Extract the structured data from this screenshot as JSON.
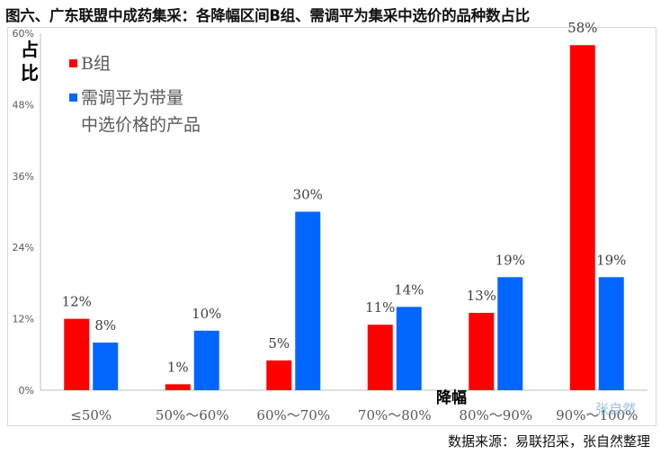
{
  "title": "图六、广东联盟中成药集采：各降幅区间B组、需调平为集采中选价的品种数占比",
  "source": "数据来源：易联招采，张自然整理",
  "watermark": "张自然",
  "chart_data": {
    "type": "bar",
    "ylabel": "占比",
    "xlabel": "降幅",
    "ylim": [
      0,
      60
    ],
    "yticks": [
      "0%",
      "12%",
      "24%",
      "36%",
      "48%",
      "60%"
    ],
    "yticks_values": [
      0,
      12,
      24,
      36,
      48,
      60
    ],
    "grid": false,
    "legend_position": "top-left",
    "categories": [
      "≤50%",
      "50%～60%",
      "60%～70%",
      "70%～80%",
      "80%～90%",
      "90%～100%"
    ],
    "series": [
      {
        "name": "B组",
        "color": "#ff0000",
        "values": [
          12,
          1,
          5,
          11,
          13,
          58
        ],
        "labels": [
          "12%",
          "1%",
          "5%",
          "11%",
          "13%",
          "58%"
        ]
      },
      {
        "name": "需调平为带量中选价格的产品",
        "color": "#0066ff",
        "values": [
          8,
          10,
          30,
          14,
          19,
          19
        ],
        "labels": [
          "8%",
          "10%",
          "30%",
          "14%",
          "19%",
          "19%"
        ]
      }
    ]
  }
}
